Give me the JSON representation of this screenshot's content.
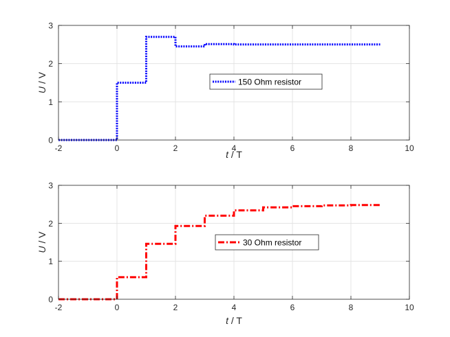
{
  "chart_data": [
    {
      "type": "line",
      "step": true,
      "xlabel": {
        "var": "t",
        "unit": " / T"
      },
      "ylabel": {
        "var": "U",
        "unit": " / V"
      },
      "xlim": [
        -2,
        10
      ],
      "ylim": [
        0,
        3
      ],
      "xticks": [
        -2,
        0,
        2,
        4,
        6,
        8,
        10
      ],
      "yticks": [
        0,
        1,
        2,
        3
      ],
      "xtick_labels": [
        "-2",
        "0",
        "2",
        "4",
        "6",
        "8",
        "10"
      ],
      "ytick_labels": [
        "0",
        "1",
        "2",
        "3"
      ],
      "grid": true,
      "legend": "center-right",
      "series": [
        {
          "name": "150 Ohm resistor",
          "color": "#0000ff",
          "line_style": "dotted",
          "x": [
            -2,
            0,
            1,
            2,
            3,
            4,
            5,
            6,
            7,
            8,
            9
          ],
          "y": [
            0,
            1.5,
            2.7,
            2.45,
            2.51,
            2.5,
            2.5,
            2.5,
            2.5,
            2.5,
            2.5
          ]
        }
      ]
    },
    {
      "type": "line",
      "step": true,
      "xlabel": {
        "var": "t",
        "unit": " / T"
      },
      "ylabel": {
        "var": "U",
        "unit": " / V"
      },
      "xlim": [
        -2,
        10
      ],
      "ylim": [
        0,
        3
      ],
      "xticks": [
        -2,
        0,
        2,
        4,
        6,
        8,
        10
      ],
      "yticks": [
        0,
        1,
        2,
        3
      ],
      "xtick_labels": [
        "-2",
        "0",
        "2",
        "4",
        "6",
        "8",
        "10"
      ],
      "ytick_labels": [
        "0",
        "1",
        "2",
        "3"
      ],
      "grid": true,
      "legend": "center",
      "series": [
        {
          "name": "30 Ohm resistor",
          "color": "#ff0000",
          "line_style": "dash-dot",
          "x": [
            -2,
            0,
            1,
            2,
            3,
            4,
            5,
            6,
            7,
            8,
            9
          ],
          "y": [
            0,
            0.58,
            1.46,
            1.93,
            2.2,
            2.34,
            2.42,
            2.45,
            2.47,
            2.48,
            2.49
          ]
        }
      ]
    }
  ]
}
